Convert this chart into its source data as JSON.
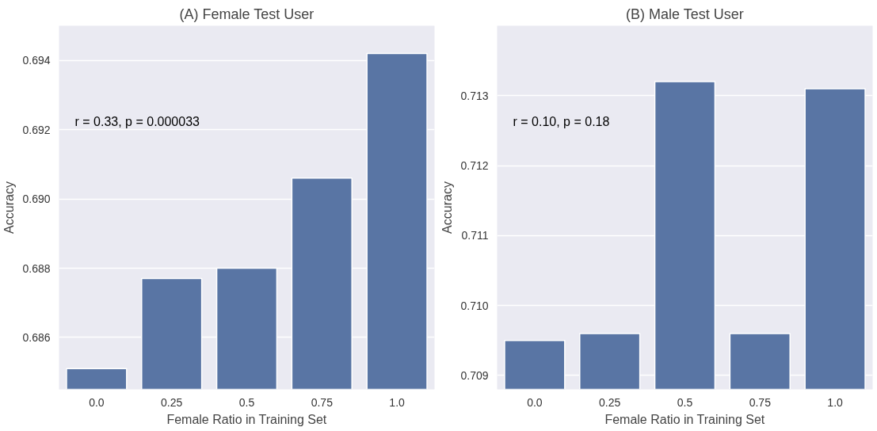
{
  "chart_data": [
    {
      "type": "bar",
      "title": "(A) Female Test User",
      "xlabel": "Female Ratio in Training Set",
      "ylabel": "Accuracy",
      "categories": [
        "0.0",
        "0.25",
        "0.5",
        "0.75",
        "1.0"
      ],
      "series": [
        {
          "color": "#5975a4",
          "values": [
            0.6851,
            0.6877,
            0.688,
            0.6906,
            0.6942
          ]
        }
      ],
      "ylim": [
        0.6845,
        0.695
      ],
      "yticks": [
        0.686,
        0.688,
        {
          "value": 0.69,
          "label": "0.690"
        },
        0.692,
        0.694
      ],
      "grid": "y",
      "annotations": [
        "r = 0.33, p = 0.000033"
      ]
    },
    {
      "type": "bar",
      "title": "(B) Male Test User",
      "xlabel": "Female Ratio in Training Set",
      "ylabel": "Accuracy",
      "categories": [
        "0.0",
        "0.25",
        "0.5",
        "0.75",
        "1.0"
      ],
      "series": [
        {
          "color": "#5975a4",
          "values": [
            0.7095,
            0.7096,
            0.7132,
            0.7096,
            0.7131
          ]
        }
      ],
      "ylim": [
        0.7088,
        0.714
      ],
      "yticks": [
        0.709,
        {
          "value": 0.71,
          "label": "0.710"
        },
        0.711,
        0.712,
        0.713
      ],
      "grid": "y",
      "annotations": [
        "r = 0.10, p = 0.18"
      ]
    }
  ]
}
